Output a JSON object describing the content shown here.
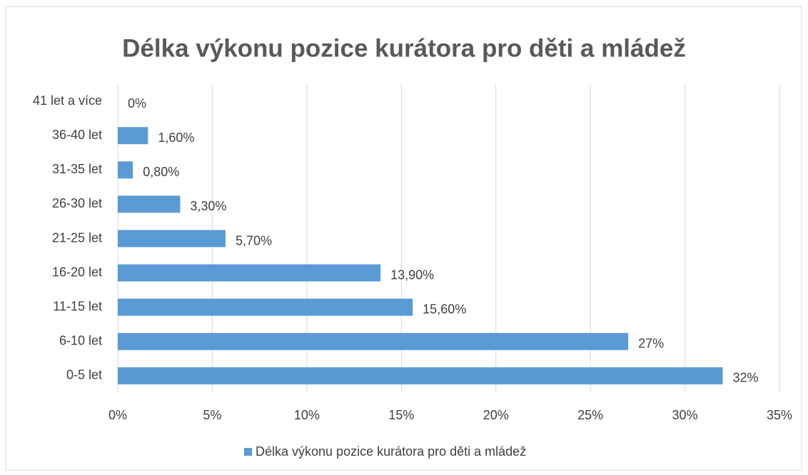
{
  "chart_data": {
    "type": "bar",
    "orientation": "horizontal",
    "title": "Délka výkonu pozice kurátora pro děti a mládež",
    "categories": [
      "0-5 let",
      "6-10 let",
      "11-15 let",
      "16-20 let",
      "21-25 let",
      "26-30 let",
      "31-35 let",
      "36-40 let",
      "41 let a více"
    ],
    "series": [
      {
        "name": "Délka výkonu pozice kurátora pro děti a mládež",
        "color": "#5b9bd5",
        "values": [
          32,
          27,
          15.6,
          13.9,
          5.7,
          3.3,
          0.8,
          1.6,
          0
        ],
        "value_labels": [
          "32%",
          "27%",
          "15,60%",
          "13,90%",
          "5,70%",
          "3,30%",
          "0,80%",
          "1,60%",
          "0%"
        ]
      }
    ],
    "xlim": [
      0,
      35
    ],
    "xticks": [
      {
        "value": 0,
        "label": "0%"
      },
      {
        "value": 5,
        "label": "5%"
      },
      {
        "value": 10,
        "label": "10%"
      },
      {
        "value": 15,
        "label": "15%"
      },
      {
        "value": 20,
        "label": "20%"
      },
      {
        "value": 25,
        "label": "25%"
      },
      {
        "value": 30,
        "label": "30%"
      },
      {
        "value": 35,
        "label": "35%"
      }
    ],
    "grid": true,
    "legend": "bottom"
  }
}
